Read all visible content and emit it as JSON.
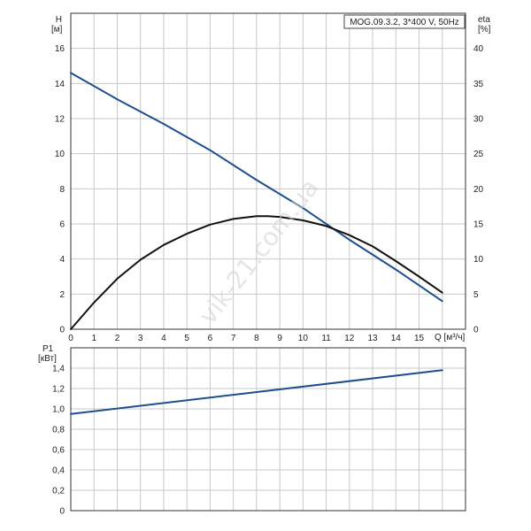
{
  "chart_data": [
    {
      "type": "line",
      "title": "MOG.09.3.2, 3*400 V, 50Hz",
      "ylabel": "H",
      "yunit": "[м]",
      "y2label": "eta",
      "y2unit": "[%]",
      "xlabel": "Q [м³/ч]",
      "xlim": [
        0,
        17
      ],
      "ylim": [
        0,
        18
      ],
      "y2lim": [
        0,
        45
      ],
      "xticks": [
        0,
        1,
        2,
        3,
        4,
        5,
        6,
        7,
        8,
        9,
        10,
        11,
        12,
        13,
        14,
        15
      ],
      "xtick_labels": [
        "0",
        "1",
        "2",
        "3",
        "4",
        "5",
        "6",
        "7",
        "8",
        "9",
        "10",
        "11",
        "12",
        "13",
        "14",
        "15"
      ],
      "yticks": [
        0,
        2,
        4,
        6,
        8,
        10,
        12,
        14,
        16
      ],
      "ytick_labels": [
        "0",
        "2",
        "4",
        "6",
        "8",
        "10",
        "12",
        "14",
        "16"
      ],
      "y2ticks": [
        0,
        5,
        10,
        15,
        20,
        25,
        30,
        35,
        40
      ],
      "y2tick_labels": [
        "0",
        "5",
        "10",
        "15",
        "20",
        "25",
        "30",
        "35",
        "40"
      ],
      "grid": true,
      "series": [
        {
          "axis": "left",
          "color": "#1f4e8c",
          "x": [
            0,
            2,
            4,
            6,
            8,
            10,
            12,
            14,
            16
          ],
          "y": [
            14.6,
            13.1,
            11.7,
            10.2,
            8.5,
            6.9,
            5.1,
            3.4,
            1.6
          ]
        },
        {
          "axis": "right",
          "color": "#111111",
          "x": [
            0,
            1,
            2,
            3,
            4,
            5,
            6,
            7,
            8,
            8.5,
            9,
            10,
            11,
            12,
            13,
            14,
            15,
            16
          ],
          "y": [
            0,
            3.8,
            7.2,
            9.9,
            12.0,
            13.6,
            14.9,
            15.7,
            16.1,
            16.1,
            16.0,
            15.5,
            14.7,
            13.4,
            11.8,
            9.7,
            7.5,
            5.2
          ]
        }
      ]
    },
    {
      "type": "line",
      "ylabel": "P1",
      "yunit": "[кВт]",
      "xlim": [
        0,
        17
      ],
      "ylim": [
        0,
        1.6
      ],
      "yticks": [
        0,
        0.2,
        0.4,
        0.6,
        0.8,
        1.0,
        1.2,
        1.4
      ],
      "ytick_labels": [
        "0",
        "0,2",
        "0,4",
        "0,6",
        "0,8",
        "1,0",
        "1,2",
        "1,4"
      ],
      "grid": true,
      "series": [
        {
          "axis": "left",
          "color": "#1f4e8c",
          "x": [
            0,
            16
          ],
          "y": [
            0.95,
            1.38
          ]
        }
      ]
    }
  ],
  "watermark": "vik-21.com.ua"
}
